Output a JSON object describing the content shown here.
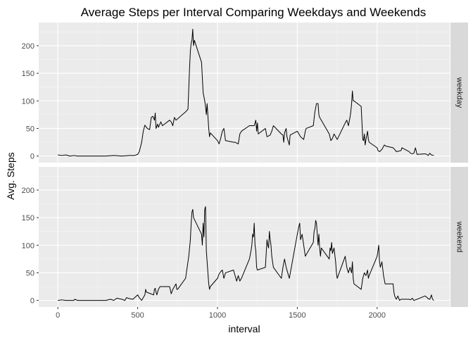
{
  "chart_data": {
    "type": "line",
    "title": "Average Steps per Interval Comparing Weekdays and Weekends",
    "xlabel": "interval",
    "ylabel": "Avg. Steps",
    "xlim": [
      -120,
      2455
    ],
    "ylim": [
      -12,
      242
    ],
    "x_ticks": [
      0,
      500,
      1000,
      1500,
      2000
    ],
    "y_ticks": [
      0,
      50,
      100,
      150,
      200
    ],
    "grid": true,
    "line_color": "#000000",
    "panel_background": "#ebebeb",
    "strip_background": "#d9d9d9",
    "panels": [
      {
        "strip": "weekday",
        "points": [
          [
            0,
            2
          ],
          [
            25,
            1
          ],
          [
            50,
            2
          ],
          [
            75,
            0
          ],
          [
            100,
            1
          ],
          [
            125,
            0
          ],
          [
            150,
            0
          ],
          [
            200,
            0
          ],
          [
            250,
            0
          ],
          [
            300,
            0
          ],
          [
            350,
            1
          ],
          [
            400,
            0
          ],
          [
            450,
            1
          ],
          [
            480,
            1
          ],
          [
            500,
            3
          ],
          [
            510,
            8
          ],
          [
            525,
            25
          ],
          [
            535,
            45
          ],
          [
            545,
            56
          ],
          [
            560,
            50
          ],
          [
            575,
            48
          ],
          [
            585,
            70
          ],
          [
            595,
            72
          ],
          [
            605,
            65
          ],
          [
            610,
            78
          ],
          [
            615,
            50
          ],
          [
            625,
            58
          ],
          [
            630,
            52
          ],
          [
            645,
            62
          ],
          [
            655,
            55
          ],
          [
            700,
            65
          ],
          [
            710,
            62
          ],
          [
            720,
            55
          ],
          [
            730,
            70
          ],
          [
            740,
            65
          ],
          [
            800,
            80
          ],
          [
            815,
            85
          ],
          [
            825,
            160
          ],
          [
            830,
            190
          ],
          [
            835,
            205
          ],
          [
            840,
            210
          ],
          [
            845,
            230
          ],
          [
            850,
            200
          ],
          [
            855,
            210
          ],
          [
            900,
            170
          ],
          [
            910,
            115
          ],
          [
            920,
            100
          ],
          [
            925,
            90
          ],
          [
            930,
            75
          ],
          [
            935,
            95
          ],
          [
            945,
            50
          ],
          [
            950,
            35
          ],
          [
            955,
            42
          ],
          [
            1000,
            28
          ],
          [
            1010,
            22
          ],
          [
            1020,
            32
          ],
          [
            1030,
            45
          ],
          [
            1040,
            50
          ],
          [
            1045,
            40
          ],
          [
            1050,
            28
          ],
          [
            1100,
            25
          ],
          [
            1110,
            25
          ],
          [
            1130,
            22
          ],
          [
            1140,
            40
          ],
          [
            1150,
            45
          ],
          [
            1200,
            55
          ],
          [
            1230,
            55
          ],
          [
            1240,
            65
          ],
          [
            1245,
            45
          ],
          [
            1250,
            60
          ],
          [
            1255,
            40
          ],
          [
            1300,
            50
          ],
          [
            1310,
            35
          ],
          [
            1330,
            38
          ],
          [
            1340,
            45
          ],
          [
            1350,
            55
          ],
          [
            1400,
            40
          ],
          [
            1410,
            38
          ],
          [
            1415,
            25
          ],
          [
            1420,
            42
          ],
          [
            1430,
            50
          ],
          [
            1435,
            35
          ],
          [
            1440,
            30
          ],
          [
            1450,
            20
          ],
          [
            1455,
            38
          ],
          [
            1500,
            45
          ],
          [
            1510,
            40
          ],
          [
            1520,
            35
          ],
          [
            1540,
            30
          ],
          [
            1550,
            45
          ],
          [
            1555,
            50
          ],
          [
            1600,
            55
          ],
          [
            1610,
            80
          ],
          [
            1620,
            95
          ],
          [
            1630,
            95
          ],
          [
            1635,
            75
          ],
          [
            1640,
            70
          ],
          [
            1650,
            65
          ],
          [
            1700,
            40
          ],
          [
            1710,
            28
          ],
          [
            1720,
            32
          ],
          [
            1730,
            40
          ],
          [
            1740,
            35
          ],
          [
            1750,
            30
          ],
          [
            1800,
            60
          ],
          [
            1810,
            65
          ],
          [
            1820,
            55
          ],
          [
            1830,
            70
          ],
          [
            1835,
            80
          ],
          [
            1840,
            95
          ],
          [
            1845,
            118
          ],
          [
            1850,
            100
          ],
          [
            1855,
            100
          ],
          [
            1900,
            90
          ],
          [
            1910,
            30
          ],
          [
            1915,
            28
          ],
          [
            1920,
            40
          ],
          [
            1925,
            20
          ],
          [
            1930,
            30
          ],
          [
            1940,
            45
          ],
          [
            1945,
            30
          ],
          [
            1950,
            25
          ],
          [
            2000,
            15
          ],
          [
            2005,
            10
          ],
          [
            2015,
            8
          ],
          [
            2030,
            12
          ],
          [
            2045,
            20
          ],
          [
            2055,
            18
          ],
          [
            2100,
            15
          ],
          [
            2110,
            12
          ],
          [
            2120,
            8
          ],
          [
            2150,
            10
          ],
          [
            2155,
            15
          ],
          [
            2200,
            8
          ],
          [
            2210,
            5
          ],
          [
            2220,
            4
          ],
          [
            2230,
            5
          ],
          [
            2240,
            15
          ],
          [
            2250,
            3
          ],
          [
            2300,
            4
          ],
          [
            2310,
            3
          ],
          [
            2320,
            1
          ],
          [
            2330,
            5
          ],
          [
            2340,
            2
          ],
          [
            2355,
            1
          ]
        ]
      },
      {
        "strip": "weekend",
        "points": [
          [
            0,
            0
          ],
          [
            25,
            1
          ],
          [
            50,
            0
          ],
          [
            100,
            0
          ],
          [
            105,
            2
          ],
          [
            125,
            0
          ],
          [
            200,
            0
          ],
          [
            300,
            0
          ],
          [
            330,
            2
          ],
          [
            350,
            0
          ],
          [
            370,
            4
          ],
          [
            400,
            2
          ],
          [
            420,
            0
          ],
          [
            430,
            5
          ],
          [
            450,
            3
          ],
          [
            470,
            2
          ],
          [
            500,
            10
          ],
          [
            510,
            5
          ],
          [
            525,
            0
          ],
          [
            545,
            10
          ],
          [
            550,
            20
          ],
          [
            555,
            15
          ],
          [
            600,
            10
          ],
          [
            605,
            20
          ],
          [
            610,
            22
          ],
          [
            615,
            15
          ],
          [
            620,
            10
          ],
          [
            630,
            20
          ],
          [
            640,
            25
          ],
          [
            700,
            25
          ],
          [
            710,
            12
          ],
          [
            720,
            20
          ],
          [
            730,
            25
          ],
          [
            740,
            30
          ],
          [
            745,
            20
          ],
          [
            750,
            20
          ],
          [
            800,
            40
          ],
          [
            810,
            60
          ],
          [
            820,
            80
          ],
          [
            830,
            110
          ],
          [
            835,
            140
          ],
          [
            840,
            160
          ],
          [
            845,
            165
          ],
          [
            850,
            150
          ],
          [
            900,
            120
          ],
          [
            905,
            100
          ],
          [
            910,
            140
          ],
          [
            915,
            115
          ],
          [
            920,
            165
          ],
          [
            925,
            170
          ],
          [
            930,
            90
          ],
          [
            935,
            70
          ],
          [
            940,
            50
          ],
          [
            945,
            30
          ],
          [
            950,
            20
          ],
          [
            955,
            25
          ],
          [
            1000,
            40
          ],
          [
            1010,
            48
          ],
          [
            1020,
            52
          ],
          [
            1030,
            55
          ],
          [
            1040,
            40
          ],
          [
            1045,
            45
          ],
          [
            1050,
            50
          ],
          [
            1100,
            55
          ],
          [
            1110,
            45
          ],
          [
            1120,
            35
          ],
          [
            1130,
            45
          ],
          [
            1140,
            35
          ],
          [
            1150,
            40
          ],
          [
            1200,
            75
          ],
          [
            1210,
            90
          ],
          [
            1215,
            100
          ],
          [
            1220,
            120
          ],
          [
            1225,
            115
          ],
          [
            1230,
            140
          ],
          [
            1235,
            100
          ],
          [
            1240,
            90
          ],
          [
            1245,
            60
          ],
          [
            1250,
            55
          ],
          [
            1300,
            60
          ],
          [
            1310,
            110
          ],
          [
            1315,
            100
          ],
          [
            1320,
            95
          ],
          [
            1325,
            125
          ],
          [
            1330,
            110
          ],
          [
            1335,
            100
          ],
          [
            1340,
            80
          ],
          [
            1345,
            70
          ],
          [
            1350,
            60
          ],
          [
            1400,
            40
          ],
          [
            1410,
            60
          ],
          [
            1420,
            75
          ],
          [
            1430,
            60
          ],
          [
            1440,
            50
          ],
          [
            1450,
            40
          ],
          [
            1500,
            120
          ],
          [
            1510,
            135
          ],
          [
            1515,
            140
          ],
          [
            1520,
            110
          ],
          [
            1530,
            120
          ],
          [
            1540,
            100
          ],
          [
            1545,
            90
          ],
          [
            1550,
            80
          ],
          [
            1600,
            105
          ],
          [
            1605,
            125
          ],
          [
            1610,
            130
          ],
          [
            1615,
            145
          ],
          [
            1620,
            140
          ],
          [
            1630,
            100
          ],
          [
            1635,
            120
          ],
          [
            1640,
            95
          ],
          [
            1645,
            80
          ],
          [
            1650,
            95
          ],
          [
            1700,
            75
          ],
          [
            1705,
            95
          ],
          [
            1710,
            90
          ],
          [
            1715,
            105
          ],
          [
            1720,
            85
          ],
          [
            1730,
            95
          ],
          [
            1740,
            70
          ],
          [
            1745,
            50
          ],
          [
            1750,
            40
          ],
          [
            1800,
            80
          ],
          [
            1805,
            70
          ],
          [
            1810,
            60
          ],
          [
            1820,
            50
          ],
          [
            1830,
            60
          ],
          [
            1840,
            50
          ],
          [
            1845,
            70
          ],
          [
            1850,
            40
          ],
          [
            1855,
            30
          ],
          [
            1900,
            20
          ],
          [
            1910,
            40
          ],
          [
            1920,
            50
          ],
          [
            1930,
            45
          ],
          [
            1940,
            55
          ],
          [
            1945,
            40
          ],
          [
            1950,
            45
          ],
          [
            2000,
            80
          ],
          [
            2005,
            90
          ],
          [
            2010,
            100
          ],
          [
            2015,
            70
          ],
          [
            2020,
            60
          ],
          [
            2030,
            70
          ],
          [
            2040,
            45
          ],
          [
            2050,
            30
          ],
          [
            2100,
            30
          ],
          [
            2105,
            15
          ],
          [
            2110,
            8
          ],
          [
            2115,
            5
          ],
          [
            2120,
            2
          ],
          [
            2130,
            8
          ],
          [
            2140,
            0
          ],
          [
            2150,
            2
          ],
          [
            2200,
            2
          ],
          [
            2210,
            1
          ],
          [
            2220,
            4
          ],
          [
            2230,
            0
          ],
          [
            2240,
            1
          ],
          [
            2250,
            2
          ],
          [
            2300,
            8
          ],
          [
            2310,
            6
          ],
          [
            2320,
            3
          ],
          [
            2330,
            2
          ],
          [
            2340,
            10
          ],
          [
            2345,
            4
          ],
          [
            2350,
            1
          ],
          [
            2355,
            0
          ]
        ]
      }
    ]
  }
}
